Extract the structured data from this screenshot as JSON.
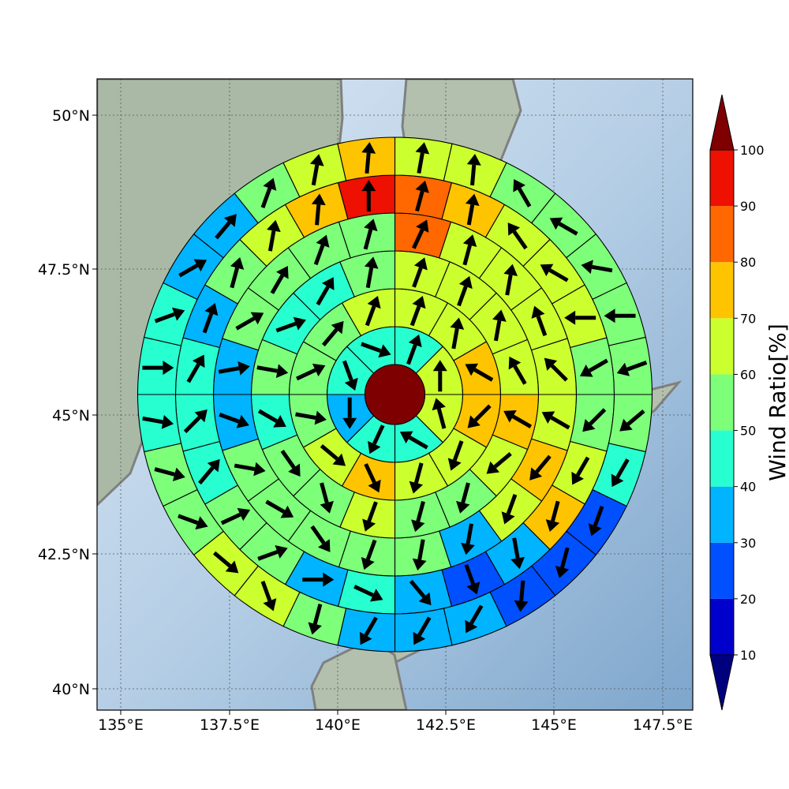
{
  "chart_data": {
    "type": "heatmap",
    "subtype": "polar-sector-map-with-wind-vectors",
    "projection": "map",
    "lon_range": [
      134.5,
      149.0
    ],
    "lat_range": [
      39.6,
      50.6
    ],
    "x_ticks": [
      "135°E",
      "137.5°E",
      "140°E",
      "142.5°E",
      "145°E",
      "147.5°E"
    ],
    "y_ticks": [
      "50°N",
      "47.5°N",
      "45°N",
      "42.5°N",
      "40°N"
    ],
    "grid": true,
    "colorbar": {
      "label": "Wind Ratio[%]",
      "ticks": [
        "10",
        "20",
        "30",
        "40",
        "50",
        "60",
        "70",
        "80",
        "90",
        "100"
      ],
      "levels": [
        10,
        20,
        30,
        40,
        50,
        60,
        70,
        80,
        90,
        100
      ],
      "colors": [
        "#0000cd",
        "#0050ff",
        "#00b4ff",
        "#28ffd0",
        "#7dff7a",
        "#ccff2e",
        "#ffc400",
        "#ff6700",
        "#ee1000"
      ],
      "under_color": "#00007f",
      "over_color": "#7f0000",
      "extend": "both",
      "location": "right"
    },
    "center": {
      "lon": 141.75,
      "lat": 45.1,
      "value": 100
    },
    "rings": [
      {
        "ring": 1,
        "sectors": 8,
        "values": [
          40,
          60,
          60,
          45,
          40,
          30,
          45,
          45
        ],
        "directions": [
          20,
          0,
          -15,
          -60,
          -155,
          180,
          160,
          110
        ]
      },
      {
        "ring": 2,
        "sectors": 12,
        "values": [
          60,
          65,
          70,
          70,
          60,
          60,
          70,
          60,
          55,
          55,
          55,
          65
        ],
        "directions": [
          20,
          10,
          -60,
          -135,
          -160,
          -165,
          155,
          130,
          100,
          65,
          40,
          20
        ]
      },
      {
        "ring": 3,
        "sectors": 16,
        "values": [
          60,
          60,
          65,
          60,
          70,
          60,
          55,
          55,
          60,
          50,
          50,
          45,
          55,
          45,
          45,
          55
        ],
        "directions": [
          20,
          20,
          10,
          -30,
          -60,
          -130,
          -165,
          -165,
          -160,
          165,
          145,
          120,
          100,
          70,
          30,
          10
        ]
      },
      {
        "ring": 4,
        "sectors": 20,
        "values": [
          80,
          60,
          60,
          60,
          60,
          60,
          70,
          60,
          35,
          50,
          55,
          55,
          55,
          50,
          35,
          35,
          50,
          50,
          55,
          55
        ],
        "directions": [
          25,
          15,
          10,
          -20,
          -45,
          -60,
          -140,
          -160,
          -170,
          -170,
          -160,
          145,
          120,
          100,
          110,
          80,
          60,
          30,
          20,
          15
        ]
      },
      {
        "ring": 5,
        "sectors": 24,
        "values": [
          80,
          75,
          65,
          65,
          60,
          55,
          55,
          60,
          70,
          35,
          20,
          30,
          45,
          35,
          55,
          55,
          45,
          45,
          40,
          35,
          50,
          60,
          70,
          95
        ],
        "directions": [
          15,
          10,
          -35,
          -60,
          -90,
          -120,
          -135,
          -150,
          -165,
          170,
          160,
          140,
          115,
          90,
          70,
          65,
          40,
          45,
          30,
          20,
          15,
          10,
          5,
          0
        ]
      },
      {
        "ring": 6,
        "sectors": 28,
        "values": [
          60,
          60,
          55,
          55,
          55,
          55,
          50,
          50,
          45,
          20,
          20,
          20,
          30,
          30,
          35,
          55,
          60,
          60,
          55,
          50,
          45,
          45,
          40,
          35,
          35,
          55,
          60,
          75
        ],
        "directions": [
          10,
          5,
          -30,
          -60,
          -80,
          -90,
          -110,
          -130,
          -150,
          -160,
          -165,
          -175,
          -150,
          -150,
          -150,
          -165,
          160,
          130,
          110,
          105,
          100,
          90,
          70,
          60,
          40,
          20,
          10,
          5
        ]
      }
    ]
  }
}
